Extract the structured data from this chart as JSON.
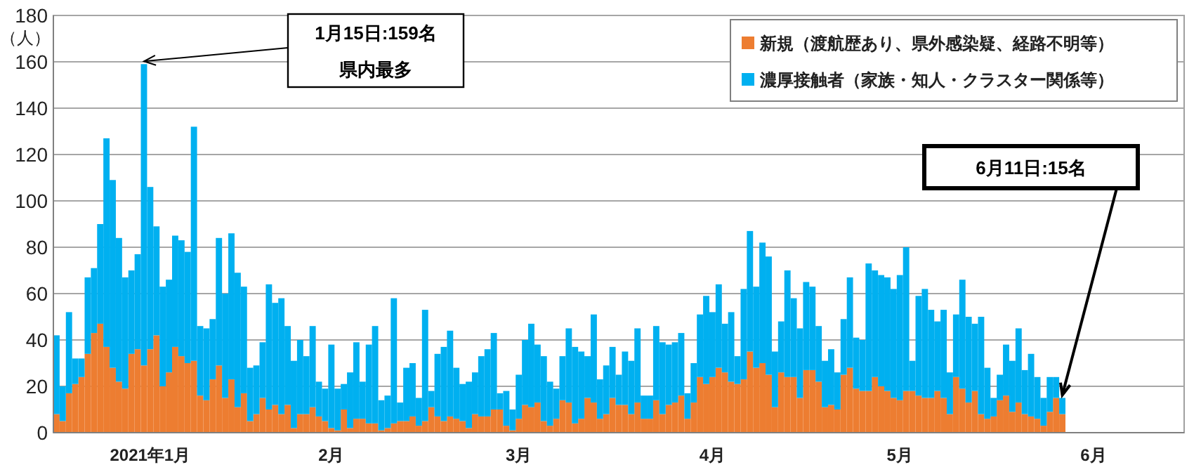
{
  "chart_data": {
    "type": "bar",
    "stacked": true,
    "ylabel": "（人）",
    "categories": [
      null,
      null,
      null,
      null,
      null,
      null,
      null,
      null,
      null,
      null,
      null,
      null,
      null,
      null,
      null,
      "2021年1月",
      null,
      null,
      null,
      null,
      null,
      null,
      null,
      null,
      null,
      null,
      null,
      null,
      null,
      null,
      null,
      null,
      null,
      null,
      null,
      null,
      null,
      null,
      null,
      null,
      null,
      null,
      null,
      null,
      "2月",
      null,
      null,
      null,
      null,
      null,
      null,
      null,
      null,
      null,
      null,
      null,
      null,
      null,
      null,
      null,
      null,
      null,
      null,
      null,
      null,
      null,
      null,
      null,
      null,
      null,
      null,
      null,
      null,
      null,
      "3月",
      null,
      null,
      null,
      null,
      null,
      null,
      null,
      null,
      null,
      null,
      null,
      null,
      null,
      null,
      null,
      null,
      null,
      null,
      null,
      null,
      null,
      null,
      null,
      null,
      null,
      null,
      null,
      null,
      null,
      null,
      "4月",
      null,
      null,
      null,
      null,
      null,
      null,
      null,
      null,
      null,
      null,
      null,
      null,
      null,
      null,
      null,
      null,
      null,
      null,
      null,
      null,
      null,
      null,
      null,
      null,
      null,
      null,
      null,
      null,
      null,
      "5月",
      null,
      null,
      null,
      null,
      null,
      null,
      null,
      null,
      null,
      null,
      null,
      null,
      null,
      null,
      null,
      null,
      null,
      null,
      null,
      null,
      null,
      null,
      null,
      null,
      null,
      null,
      null,
      null,
      null,
      null,
      "6月",
      null,
      null,
      null,
      null,
      null,
      null,
      null,
      null,
      null,
      null,
      null,
      null,
      null,
      null
    ],
    "series": [
      {
        "name": "新規（渡航歴あり、県外感染疑、経路不明等）",
        "color": "#ed7d31",
        "values": [
          8,
          5,
          17,
          21,
          24,
          34,
          43,
          47,
          37,
          28,
          22,
          19,
          34,
          36,
          29,
          36,
          42,
          20,
          26,
          37,
          33,
          30,
          31,
          16,
          14,
          23,
          29,
          15,
          23,
          11,
          17,
          5,
          8,
          15,
          10,
          12,
          8,
          12,
          2,
          8,
          8,
          11,
          7,
          5,
          2,
          1,
          10,
          2,
          6,
          6,
          4,
          4,
          1,
          2,
          4,
          5,
          5,
          7,
          3,
          5,
          11,
          7,
          5,
          7,
          6,
          5,
          2,
          8,
          7,
          7,
          10,
          10,
          3,
          1,
          6,
          12,
          11,
          13,
          5,
          3,
          6,
          14,
          13,
          4,
          6,
          15,
          13,
          6,
          8,
          15,
          12,
          12,
          8,
          13,
          6,
          6,
          14,
          8,
          12,
          13,
          16,
          6,
          13,
          24,
          21,
          24,
          28,
          26,
          22,
          21,
          23,
          35,
          28,
          30,
          25,
          11,
          26,
          24,
          24,
          15,
          27,
          27,
          22,
          11,
          12,
          10,
          25,
          28,
          19,
          18,
          18,
          24,
          20,
          18,
          15,
          14,
          18,
          18,
          16,
          15,
          15,
          18,
          15,
          8,
          24,
          19,
          13,
          18,
          8,
          6,
          7,
          14,
          16,
          9,
          13,
          8,
          7,
          6,
          3,
          9,
          15,
          8,
          null,
          null,
          null,
          null,
          null,
          null,
          null,
          null,
          null,
          null,
          null,
          null,
          null,
          null,
          null,
          null,
          null,
          null,
          null
        ]
      },
      {
        "name": "濃厚接触者（家族・知人・クラスター関係等）",
        "color": "#00b0f0",
        "values": [
          34,
          15,
          35,
          11,
          8,
          33,
          28,
          43,
          90,
          81,
          62,
          48,
          36,
          41,
          130,
          70,
          47,
          43,
          40,
          48,
          50,
          48,
          101,
          30,
          31,
          26,
          55,
          45,
          63,
          58,
          46,
          23,
          21,
          24,
          54,
          44,
          50,
          34,
          29,
          32,
          25,
          35,
          15,
          14,
          36,
          18,
          11,
          24,
          33,
          16,
          34,
          42,
          13,
          14,
          54,
          8,
          23,
          23,
          12,
          48,
          7,
          27,
          32,
          37,
          22,
          16,
          20,
          18,
          26,
          29,
          33,
          7,
          15,
          9,
          19,
          28,
          36,
          25,
          28,
          19,
          13,
          19,
          32,
          33,
          29,
          18,
          38,
          17,
          21,
          22,
          13,
          23,
          23,
          32,
          10,
          10,
          32,
          31,
          26,
          26,
          27,
          11,
          17,
          27,
          38,
          28,
          36,
          21,
          30,
          12,
          39,
          52,
          35,
          52,
          51,
          24,
          22,
          46,
          34,
          30,
          38,
          36,
          24,
          20,
          24,
          16,
          24,
          39,
          22,
          22,
          55,
          46,
          48,
          49,
          47,
          54,
          62,
          13,
          43,
          47,
          38,
          30,
          38,
          18,
          27,
          47,
          37,
          29,
          42,
          22,
          8,
          11,
          22,
          22,
          32,
          19,
          27,
          18,
          12,
          15,
          9,
          7,
          null,
          null,
          null,
          null,
          null,
          null,
          null,
          null,
          null,
          null,
          null,
          null,
          null,
          null,
          null,
          null,
          null,
          null,
          null
        ]
      }
    ],
    "ylim": [
      0,
      180
    ],
    "yticks": [
      0,
      20,
      40,
      60,
      80,
      100,
      120,
      140,
      160,
      180
    ],
    "grid": "y",
    "legend": "top right",
    "annotations": [
      "1月15日:159名",
      "県内最多",
      "6月11日:15名"
    ]
  }
}
